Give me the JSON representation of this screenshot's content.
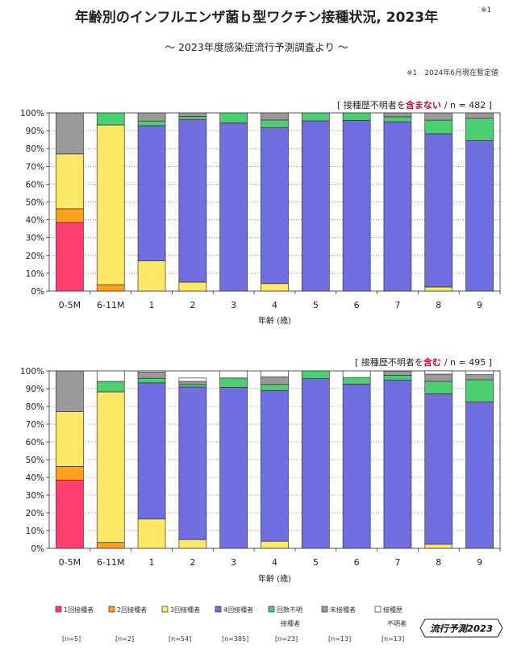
{
  "header": {
    "title": "年齢別のインフルエンザ菌ｂ型ワクチン接種状況, 2023年",
    "subtitle": "～ 2023年度感染症流行予測調査より ～",
    "corner_note": "※1",
    "note": "※1　2024年6月現在暫定値"
  },
  "brand": "流行予測2023",
  "colors": {
    "dose1": "#ff3f6e",
    "dose2": "#ffa11c",
    "dose3": "#ffe866",
    "dose4": "#6f6fe2",
    "unknown_count": "#4ccf70",
    "unvaccinated": "#9a9a9a",
    "unknown_history": "#ffffff"
  },
  "legend": [
    {
      "key": "dose1",
      "label": "1回接種者",
      "label2": "",
      "count": "[n=5]"
    },
    {
      "key": "dose2",
      "label": "2回接種者",
      "label2": "",
      "count": "[n=2]"
    },
    {
      "key": "dose3",
      "label": "3回接種者",
      "label2": "",
      "count": "[n=54]"
    },
    {
      "key": "dose4",
      "label": "4回接種者",
      "label2": "",
      "count": "[n=385]"
    },
    {
      "key": "unknown_count",
      "label": "回数不明",
      "label2": "接種者",
      "count": "[n=23]"
    },
    {
      "key": "unvaccinated",
      "label": "未接種者",
      "label2": "",
      "count": "[n=13]"
    },
    {
      "key": "unknown_history",
      "label": "接種歴",
      "label2": "不明者",
      "count": "[n=13]"
    }
  ],
  "chart_data": [
    {
      "type": "bar",
      "stacked": true,
      "annotation_prefix": "[ 接種歴不明者を",
      "annotation_highlight": "含まない",
      "annotation_suffix": "/ n = 482 ]",
      "xlabel": "年齢 (歳)",
      "ylabel": "",
      "ylim": [
        0,
        100
      ],
      "y_ticks": [
        "0%",
        "10%",
        "20%",
        "30%",
        "40%",
        "50%",
        "60%",
        "70%",
        "80%",
        "90%",
        "100%"
      ],
      "categories": [
        "0-5M",
        "6-11M",
        "1",
        "2",
        "3",
        "4",
        "5",
        "6",
        "7",
        "8",
        "9"
      ],
      "series": [
        {
          "name": "1回接種者",
          "key": "dose1",
          "values": [
            38.5,
            0,
            0,
            0,
            0,
            0,
            0,
            0,
            0,
            0,
            0
          ]
        },
        {
          "name": "2回接種者",
          "key": "dose2",
          "values": [
            7.7,
            3.6,
            0,
            0,
            0,
            0,
            0,
            0,
            0,
            0,
            0
          ]
        },
        {
          "name": "3回接種者",
          "key": "dose3",
          "values": [
            30.8,
            89.6,
            16.9,
            5.0,
            0,
            4.2,
            0,
            0,
            0,
            2.3,
            0
          ]
        },
        {
          "name": "4回接種者",
          "key": "dose4",
          "values": [
            0,
            0,
            75.9,
            91.3,
            94.4,
            87.5,
            95.5,
            95.8,
            95.0,
            86.0,
            84.5
          ]
        },
        {
          "name": "回数不明接種者",
          "key": "unknown_count",
          "values": [
            0,
            6.8,
            2.6,
            1.7,
            5.6,
            4.3,
            4.5,
            4.2,
            2.8,
            7.6,
            12.5
          ]
        },
        {
          "name": "未接種者",
          "key": "unvaccinated",
          "values": [
            23.0,
            0,
            4.6,
            2.0,
            0,
            4.0,
            0,
            0,
            2.2,
            4.1,
            3.0
          ]
        },
        {
          "name": "接種歴不明者",
          "key": "unknown_history",
          "values": [
            0,
            0,
            0,
            0,
            0,
            0,
            0,
            0,
            0,
            0,
            0
          ]
        }
      ]
    },
    {
      "type": "bar",
      "stacked": true,
      "annotation_prefix": "[ 接種歴不明者を",
      "annotation_highlight": "含む",
      "annotation_suffix": "/ n = 495 ]",
      "xlabel": "年齢 (歳)",
      "ylabel": "",
      "ylim": [
        0,
        100
      ],
      "y_ticks": [
        "0%",
        "10%",
        "20%",
        "30%",
        "40%",
        "50%",
        "60%",
        "70%",
        "80%",
        "90%",
        "100%"
      ],
      "categories": [
        "0-5M",
        "6-11M",
        "1",
        "2",
        "3",
        "4",
        "5",
        "6",
        "7",
        "8",
        "9"
      ],
      "series": [
        {
          "name": "1回接種者",
          "key": "dose1",
          "values": [
            38.5,
            0,
            0,
            0,
            0,
            0,
            0,
            0,
            0,
            0,
            0
          ]
        },
        {
          "name": "2回接種者",
          "key": "dose2",
          "values": [
            7.7,
            3.3,
            0,
            0,
            0,
            0,
            0,
            0,
            0,
            0,
            0
          ]
        },
        {
          "name": "3回接種者",
          "key": "dose3",
          "values": [
            30.8,
            84.9,
            16.5,
            4.9,
            0,
            4.0,
            0,
            0,
            0,
            2.3,
            0
          ]
        },
        {
          "name": "4回接種者",
          "key": "dose4",
          "values": [
            0,
            0,
            76.8,
            86.0,
            90.7,
            84.9,
            95.6,
            92.6,
            94.9,
            84.8,
            82.5
          ]
        },
        {
          "name": "回数不明接種者",
          "key": "unknown_count",
          "values": [
            0,
            5.9,
            2.5,
            1.4,
            5.3,
            3.5,
            4.4,
            3.7,
            2.6,
            7.0,
            12.5
          ]
        },
        {
          "name": "未接種者",
          "key": "unvaccinated",
          "values": [
            23.0,
            0,
            3.5,
            1.8,
            0,
            4.2,
            0,
            0,
            2.4,
            4.1,
            2.9
          ]
        },
        {
          "name": "接種歴不明者",
          "key": "unknown_history",
          "values": [
            0,
            5.9,
            0.7,
            1.9,
            4.0,
            3.4,
            0,
            3.7,
            0.1,
            1.8,
            2.1
          ]
        }
      ]
    }
  ]
}
